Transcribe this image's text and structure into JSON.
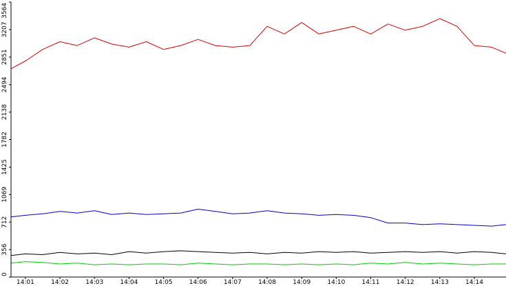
{
  "chart_data": {
    "type": "line",
    "grid": false,
    "legend": "none",
    "ylim": [
      0,
      3564
    ],
    "xlim": [
      "14:00:35",
      "14:14:55"
    ],
    "y_ticks": [
      {
        "value": 0,
        "label": "0"
      },
      {
        "value": 356,
        "label": "356"
      },
      {
        "value": 712,
        "label": "712"
      },
      {
        "value": 1069,
        "label": "1069"
      },
      {
        "value": 1425,
        "label": "1425"
      },
      {
        "value": 1782,
        "label": "1782"
      },
      {
        "value": 2138,
        "label": "2138"
      },
      {
        "value": 2494,
        "label": "2494"
      },
      {
        "value": 2851,
        "label": "2851"
      },
      {
        "value": 3207,
        "label": "3207"
      },
      {
        "value": 3564,
        "label": "3564"
      }
    ],
    "x_ticks": [
      {
        "value": "14:01",
        "label": "14:01"
      },
      {
        "value": "14:02",
        "label": "14:02"
      },
      {
        "value": "14:03",
        "label": "14:03"
      },
      {
        "value": "14:04",
        "label": "14:04"
      },
      {
        "value": "14:05",
        "label": "14:05"
      },
      {
        "value": "14:06",
        "label": "14:06"
      },
      {
        "value": "14:07",
        "label": "14:07"
      },
      {
        "value": "14:08",
        "label": "14:08"
      },
      {
        "value": "14:09",
        "label": "14:09"
      },
      {
        "value": "14:10",
        "label": "14:10"
      },
      {
        "value": "14:11",
        "label": "14:11"
      },
      {
        "value": "14:12",
        "label": "14:12"
      },
      {
        "value": "14:13",
        "label": "14:13"
      },
      {
        "value": "14:14",
        "label": "14:14"
      }
    ],
    "series": [
      {
        "color": "#dd0000",
        "x": [
          "14:00:35",
          "14:01:00",
          "14:01:30",
          "14:02:00",
          "14:02:30",
          "14:03:00",
          "14:03:30",
          "14:04:00",
          "14:04:30",
          "14:05:00",
          "14:05:30",
          "14:06:00",
          "14:06:30",
          "14:07:00",
          "14:07:30",
          "14:08:00",
          "14:08:30",
          "14:09:00",
          "14:09:30",
          "14:10:00",
          "14:10:30",
          "14:11:00",
          "14:11:30",
          "14:12:00",
          "14:12:30",
          "14:13:00",
          "14:13:30",
          "14:14:00",
          "14:14:30",
          "14:14:55"
        ],
        "values": [
          2700,
          2800,
          2950,
          3050,
          3000,
          3100,
          3020,
          2980,
          3050,
          2950,
          3000,
          3080,
          3000,
          2980,
          3000,
          3250,
          3150,
          3300,
          3150,
          3200,
          3250,
          3150,
          3280,
          3200,
          3250,
          3350,
          3250,
          3000,
          2980,
          2900
        ]
      },
      {
        "color": "#0000cc",
        "x": [
          "14:00:35",
          "14:01:00",
          "14:01:30",
          "14:02:00",
          "14:02:30",
          "14:03:00",
          "14:03:30",
          "14:04:00",
          "14:04:30",
          "14:05:00",
          "14:05:30",
          "14:06:00",
          "14:06:30",
          "14:07:00",
          "14:07:30",
          "14:08:00",
          "14:08:30",
          "14:09:00",
          "14:09:30",
          "14:10:00",
          "14:10:30",
          "14:11:00",
          "14:11:30",
          "14:12:00",
          "14:12:30",
          "14:13:00",
          "14:13:30",
          "14:14:00",
          "14:14:30",
          "14:14:55"
        ],
        "values": [
          780,
          800,
          820,
          850,
          830,
          860,
          810,
          830,
          810,
          820,
          830,
          880,
          850,
          820,
          830,
          860,
          830,
          820,
          800,
          810,
          800,
          770,
          700,
          700,
          680,
          690,
          680,
          670,
          660,
          680
        ]
      },
      {
        "color": "#000000",
        "x": [
          "14:00:35",
          "14:01:00",
          "14:01:30",
          "14:02:00",
          "14:02:30",
          "14:03:00",
          "14:03:30",
          "14:04:00",
          "14:04:30",
          "14:05:00",
          "14:05:30",
          "14:06:00",
          "14:06:30",
          "14:07:00",
          "14:07:30",
          "14:08:00",
          "14:08:30",
          "14:09:00",
          "14:09:30",
          "14:10:00",
          "14:10:30",
          "14:11:00",
          "14:11:30",
          "14:12:00",
          "14:12:30",
          "14:13:00",
          "14:13:30",
          "14:14:00",
          "14:14:30",
          "14:14:55"
        ],
        "values": [
          280,
          300,
          290,
          320,
          300,
          310,
          290,
          330,
          310,
          330,
          340,
          330,
          320,
          310,
          320,
          300,
          320,
          310,
          330,
          320,
          330,
          310,
          320,
          330,
          320,
          330,
          310,
          330,
          320,
          300
        ]
      },
      {
        "color": "#00cc00",
        "x": [
          "14:00:35",
          "14:01:00",
          "14:01:30",
          "14:02:00",
          "14:02:30",
          "14:03:00",
          "14:03:30",
          "14:04:00",
          "14:04:30",
          "14:05:00",
          "14:05:30",
          "14:06:00",
          "14:06:30",
          "14:07:00",
          "14:07:30",
          "14:08:00",
          "14:08:30",
          "14:09:00",
          "14:09:30",
          "14:10:00",
          "14:10:30",
          "14:11:00",
          "14:11:30",
          "14:12:00",
          "14:12:30",
          "14:13:00",
          "14:13:30",
          "14:14:00",
          "14:14:30",
          "14:14:55"
        ],
        "values": [
          180,
          200,
          190,
          170,
          180,
          160,
          170,
          160,
          170,
          170,
          160,
          180,
          170,
          160,
          170,
          170,
          160,
          170,
          160,
          170,
          160,
          180,
          170,
          190,
          170,
          180,
          170,
          160,
          170,
          170
        ]
      }
    ]
  }
}
